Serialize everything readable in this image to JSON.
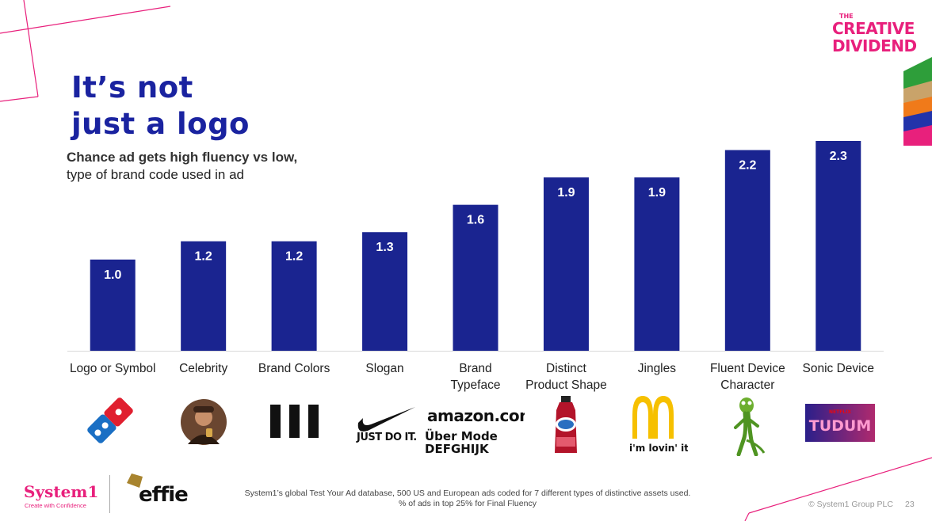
{
  "title_line1": "It’s not",
  "title_line2": "just a logo",
  "subtitle_bold": "Chance ad gets high fluency vs low,",
  "subtitle_rest": "type of brand code used in ad",
  "brand_logo": {
    "small": "THE",
    "line1": "CREATIVE",
    "line2": "DIVIDEND"
  },
  "colors": {
    "bar": "#1a2490",
    "title": "#1a23a0",
    "accent": "#e8207c",
    "deco_stack": [
      "#2e9e3a",
      "#c9a36a",
      "#f07a1a",
      "#2233aa",
      "#e8207c"
    ]
  },
  "chart_data": {
    "type": "bar",
    "title": "Chance ad gets high fluency vs low, type of brand code used in ad",
    "xlabel": "",
    "ylabel": "",
    "ylim": [
      0,
      2.3
    ],
    "grid": false,
    "categories": [
      [
        "Logo or Symbol"
      ],
      [
        "Celebrity"
      ],
      [
        "Brand Colors"
      ],
      [
        "Slogan"
      ],
      [
        "Brand",
        "Typeface"
      ],
      [
        "Distinct",
        "Product Shape"
      ],
      [
        "Jingles"
      ],
      [
        "Fluent Device",
        "Character"
      ],
      [
        "Sonic Device"
      ]
    ],
    "values": [
      1.0,
      1.2,
      1.2,
      1.3,
      1.6,
      1.9,
      1.9,
      2.2,
      2.3
    ],
    "data_labels": [
      "1.0",
      "1.2",
      "1.2",
      "1.3",
      "1.6",
      "1.9",
      "1.9",
      "2.2",
      "2.3"
    ]
  },
  "icons": [
    {
      "name": "dominos-logo-icon"
    },
    {
      "name": "celebrity-portrait-icon"
    },
    {
      "name": "three-bars-icon"
    },
    {
      "name": "nike-swoosh-icon",
      "text": "JUST DO IT."
    },
    {
      "name": "typeface-sample-icon",
      "text": "amazon.com",
      "text2": "Über Mode",
      "text3": "DEFGHIJK"
    },
    {
      "name": "ocean-spray-bottle-icon"
    },
    {
      "name": "mcdonalds-arches-icon",
      "text": "i'm lovin' it"
    },
    {
      "name": "gecko-character-icon"
    },
    {
      "name": "netflix-tudum-icon",
      "text": "TUDUM",
      "small": "NETFLIX"
    }
  ],
  "footer": {
    "note_line1": "System1’s global Test Your Ad database, 500 US and European ads coded for 7 different types of distinctive assets used.",
    "note_line2": "% of ads in top 25% for Final Fluency",
    "system1_logo": "System1",
    "system1_tagline": "Create with Confidence",
    "effie_logo": "effie",
    "copyright": "© System1 Group PLC",
    "page_number": "23"
  }
}
